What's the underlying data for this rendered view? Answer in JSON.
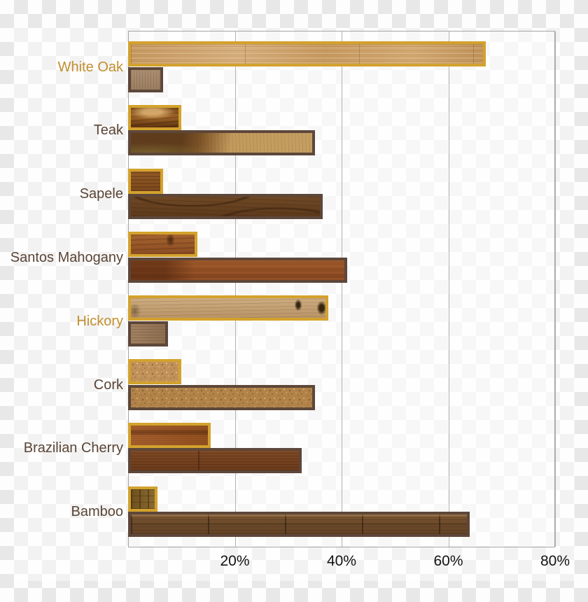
{
  "chart_data": {
    "type": "bar",
    "orientation": "horizontal",
    "units": "%",
    "xlim": [
      0,
      80
    ],
    "grid": true,
    "legend": "none",
    "x_ticks": [
      {
        "label": "20%",
        "value": 20
      },
      {
        "label": "40%",
        "value": 40
      },
      {
        "label": "60%",
        "value": 60
      },
      {
        "label": "80%",
        "value": 80
      }
    ],
    "categories": [
      {
        "label": "White Oak",
        "label_color": "#c18f2e",
        "bars": [
          {
            "value": 67,
            "border": "gold",
            "texture": "oak-light"
          },
          {
            "value": 6.5,
            "border": "brown",
            "texture": "oak-taupe"
          }
        ]
      },
      {
        "label": "Teak",
        "label_color": "#5b4435",
        "bars": [
          {
            "value": 10,
            "border": "gold",
            "texture": "teak-swirl"
          },
          {
            "value": 35,
            "border": "brown",
            "texture": "teak-tan"
          }
        ]
      },
      {
        "label": "Sapele",
        "label_color": "#5b4435",
        "bars": [
          {
            "value": 6.5,
            "border": "gold",
            "texture": "sapele-mid"
          },
          {
            "value": 36.5,
            "border": "brown",
            "texture": "sapele-dark"
          }
        ]
      },
      {
        "label": "Santos Mahogany",
        "label_color": "#5b4435",
        "bars": [
          {
            "value": 13,
            "border": "gold",
            "texture": "santos-knot"
          },
          {
            "value": 41,
            "border": "brown",
            "texture": "santos-rich"
          }
        ]
      },
      {
        "label": "Hickory",
        "label_color": "#c18f2e",
        "bars": [
          {
            "value": 37.5,
            "border": "gold",
            "texture": "hickory-light"
          },
          {
            "value": 7.5,
            "border": "brown",
            "texture": "hickory-mid"
          }
        ]
      },
      {
        "label": "Cork",
        "label_color": "#5b4435",
        "bars": [
          {
            "value": 10,
            "border": "gold",
            "texture": "cork-a"
          },
          {
            "value": 35,
            "border": "brown",
            "texture": "cork-b"
          }
        ]
      },
      {
        "label": "Brazilian Cherry",
        "label_color": "#5b4435",
        "bars": [
          {
            "value": 15.5,
            "border": "gold",
            "texture": "cherry-red"
          },
          {
            "value": 32.5,
            "border": "brown",
            "texture": "cherry-dark"
          }
        ]
      },
      {
        "label": "Bamboo",
        "label_color": "#5b4435",
        "bars": [
          {
            "value": 5.5,
            "border": "gold",
            "texture": "bamboo-olive"
          },
          {
            "value": 64,
            "border": "brown",
            "texture": "bamboo-dark"
          }
        ]
      }
    ]
  },
  "colors": {
    "gold_border": "#d3a22d",
    "brown_border": "#5d473a",
    "gold_label": "#c18f2e",
    "brown_label": "#5b4435",
    "axis_line": "#a8a4a0",
    "gridline": "#b5b1ae",
    "tick_text": "#131313",
    "checker_gray": "#e8e8e8",
    "checker_white": "#fdfdfd"
  }
}
